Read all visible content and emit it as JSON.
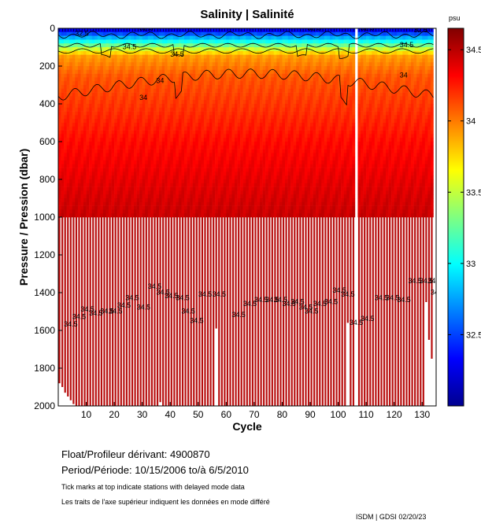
{
  "chart_data": {
    "type": "heatmap",
    "title": "Salinity | Salinité",
    "xlabel": "Cycle",
    "ylabel": "Pressure / Pression (dbar)",
    "xlim": [
      0,
      135
    ],
    "ylim": [
      0,
      2000
    ],
    "x_ticks": [
      10,
      20,
      30,
      40,
      50,
      60,
      70,
      80,
      90,
      100,
      110,
      120,
      130
    ],
    "y_ticks": [
      0,
      200,
      400,
      600,
      800,
      1000,
      1200,
      1400,
      1600,
      1800,
      2000
    ],
    "colorbar": {
      "unit": "psu",
      "range": [
        32.0,
        34.65
      ],
      "ticks": [
        32.5,
        33,
        33.5,
        34,
        34.5
      ],
      "tick_labels": [
        "32.5",
        "33",
        "33.5",
        "34",
        "34.5"
      ]
    },
    "profile_bottom_dbar": [
      1880,
      1900,
      1930,
      1950,
      1970,
      1990,
      2000,
      2000,
      2000,
      2000,
      2000,
      2000,
      2000,
      2000,
      2000,
      2000,
      2000,
      2000,
      2000,
      2000,
      2000,
      2000,
      2000,
      2000,
      2000,
      2000,
      2000,
      2000,
      2000,
      2000,
      2000,
      2000,
      2000,
      2000,
      2000,
      2000,
      1980,
      2000,
      2000,
      2000,
      2000,
      2000,
      2000,
      2000,
      2000,
      2000,
      2000,
      2000,
      2000,
      2000,
      2000,
      2000,
      2000,
      2000,
      2000,
      2000,
      1590,
      2000,
      2000,
      2000,
      2000,
      2000,
      2000,
      2000,
      2000,
      2000,
      2000,
      2000,
      2000,
      2000,
      2000,
      2000,
      2000,
      2000,
      2000,
      2000,
      2000,
      2000,
      2000,
      2000,
      2000,
      2000,
      2000,
      2000,
      2000,
      2000,
      2000,
      2000,
      2000,
      2000,
      2000,
      2000,
      2000,
      2000,
      2000,
      2000,
      2000,
      2000,
      2000,
      2000,
      2000,
      2000,
      2000,
      1560,
      2000,
      2000,
      2000,
      2000,
      2000,
      2000,
      2000,
      2000,
      2000,
      2000,
      2000,
      2000,
      2000,
      2000,
      2000,
      2000,
      2000,
      2000,
      2000,
      2000,
      2000,
      2000,
      2000,
      2000,
      2000,
      2000,
      2000,
      1450,
      1650,
      1750
    ],
    "missing_cycles": [
      107
    ],
    "contour_levels": [
      "32.5",
      "33",
      "34",
      "34.5"
    ],
    "contour_labels": [
      {
        "text": "32.5",
        "x": 6,
        "y": 40
      },
      {
        "text": "32.5",
        "x": 29,
        "y": 10
      },
      {
        "text": "34.5",
        "x": 23,
        "y": 110
      },
      {
        "text": "34.5",
        "x": 40,
        "y": 150
      },
      {
        "text": "32.5",
        "x": 89,
        "y": 10
      },
      {
        "text": "32.5",
        "x": 108,
        "y": 10
      },
      {
        "text": "32.5",
        "x": 127,
        "y": 20
      },
      {
        "text": "34.5",
        "x": 122,
        "y": 100
      },
      {
        "text": "34",
        "x": 35,
        "y": 290
      },
      {
        "text": "34",
        "x": 29,
        "y": 380
      },
      {
        "text": "34",
        "x": 122,
        "y": 260
      },
      {
        "text": "34.5",
        "x": 2,
        "y": 1580
      },
      {
        "text": "34.5",
        "x": 5,
        "y": 1540
      },
      {
        "text": "34.5",
        "x": 8,
        "y": 1500
      },
      {
        "text": "34.5",
        "x": 11,
        "y": 1520
      },
      {
        "text": "34.5",
        "x": 15,
        "y": 1510
      },
      {
        "text": "34.5",
        "x": 18,
        "y": 1510
      },
      {
        "text": "34.5",
        "x": 21,
        "y": 1480
      },
      {
        "text": "34.5",
        "x": 24,
        "y": 1440
      },
      {
        "text": "34.5",
        "x": 28,
        "y": 1490
      },
      {
        "text": "34.5",
        "x": 32,
        "y": 1380
      },
      {
        "text": "34.5",
        "x": 35,
        "y": 1410
      },
      {
        "text": "34.5",
        "x": 38,
        "y": 1430
      },
      {
        "text": "34.5",
        "x": 42,
        "y": 1440
      },
      {
        "text": "34.5",
        "x": 44,
        "y": 1510
      },
      {
        "text": "34.5",
        "x": 47,
        "y": 1560
      },
      {
        "text": "34.5",
        "x": 50,
        "y": 1420
      },
      {
        "text": "34.5",
        "x": 55,
        "y": 1420
      },
      {
        "text": "34.5",
        "x": 62,
        "y": 1530
      },
      {
        "text": "34.5",
        "x": 66,
        "y": 1470
      },
      {
        "text": "34.5",
        "x": 70,
        "y": 1450
      },
      {
        "text": "34.5",
        "x": 74,
        "y": 1450
      },
      {
        "text": "34.5",
        "x": 77,
        "y": 1450
      },
      {
        "text": "34.5",
        "x": 80,
        "y": 1470
      },
      {
        "text": "34.5",
        "x": 83,
        "y": 1460
      },
      {
        "text": "34.5",
        "x": 86,
        "y": 1490
      },
      {
        "text": "34.5",
        "x": 88,
        "y": 1510
      },
      {
        "text": "34.5",
        "x": 91,
        "y": 1470
      },
      {
        "text": "34.5",
        "x": 95,
        "y": 1460
      },
      {
        "text": "34.5",
        "x": 98,
        "y": 1400
      },
      {
        "text": "34.5",
        "x": 101,
        "y": 1420
      },
      {
        "text": "34.5",
        "x": 104,
        "y": 1570
      },
      {
        "text": "34.5",
        "x": 108,
        "y": 1550
      },
      {
        "text": "34.5",
        "x": 113,
        "y": 1440
      },
      {
        "text": "34.5",
        "x": 117,
        "y": 1440
      },
      {
        "text": "34.5",
        "x": 121,
        "y": 1450
      },
      {
        "text": "34.5",
        "x": 125,
        "y": 1350
      },
      {
        "text": "34.5",
        "x": 129,
        "y": 1350
      },
      {
        "text": "34.5",
        "x": 132,
        "y": 1350
      },
      {
        "text": "34",
        "x": 133,
        "y": 1410
      }
    ]
  },
  "info": {
    "float_label": "Float/Profileur dérivant:",
    "float_value": "4900870",
    "period_label": "Period/Période:",
    "period_value": "10/15/2006  to/à  6/5/2010",
    "note_en": "Tick marks at top indicate stations with delayed mode data",
    "note_fr": "Les traits de l'axe supérieur indiquent les données en mode différé",
    "credit": "ISDM | GDSI  02/20/23"
  },
  "colors": {
    "background": "#ffffff",
    "bar": "#b80f0f",
    "contour": "#000000"
  }
}
